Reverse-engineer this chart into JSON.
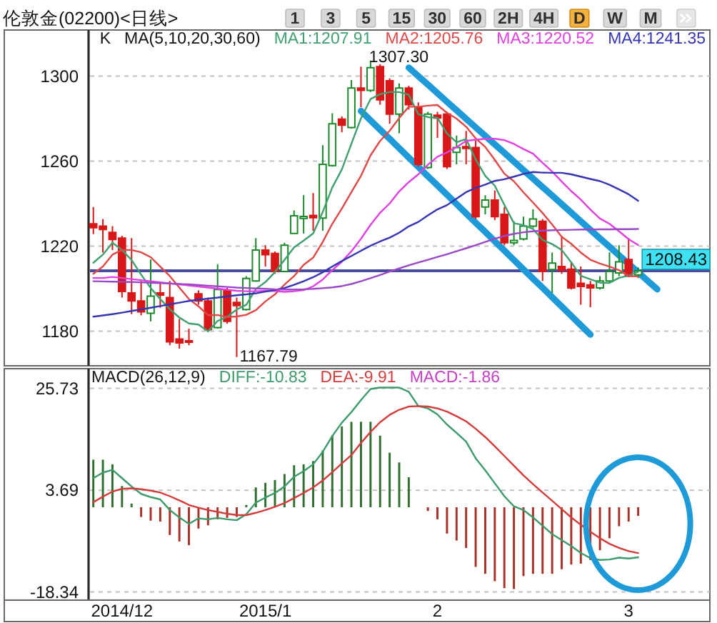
{
  "chart_data": [
    {
      "type": "candlestick",
      "title": "伦敦金(02200)<日线>",
      "subtitle": "K",
      "legend_title": "MA(5,10,20,30,60)",
      "legend": "top right",
      "grid": "y",
      "tick_labels": "y",
      "categories": [
        null,
        null,
        null,
        "2014/12",
        null,
        null,
        null,
        null,
        null,
        null,
        null,
        null,
        null,
        null,
        null,
        null,
        null,
        null,
        "2015/1",
        null,
        null,
        null,
        null,
        null,
        null,
        null,
        null,
        null,
        null,
        null,
        null,
        null,
        null,
        null,
        null,
        null,
        "2",
        null,
        null,
        null,
        null,
        null,
        null,
        null,
        null,
        null,
        null,
        null,
        null,
        null,
        null,
        null,
        null,
        null,
        null,
        null,
        "3",
        null,
        null,
        null,
        null,
        null,
        null,
        null,
        null
      ],
      "ylim": [
        1163.7,
        1321.7
      ],
      "yticks": [
        1180,
        1220,
        1260,
        1300
      ],
      "ohlc": [
        [
          1230.5,
          1238.4,
          1225.6,
          1228.7
        ],
        [
          1229.4,
          1232.8,
          1217.0,
          1227.8
        ],
        [
          1226.5,
          1229.4,
          1218.2,
          1223.1
        ],
        [
          1223.8,
          1224.9,
          1195.8,
          1198.7
        ],
        [
          1198.0,
          1223.8,
          1188.0,
          1194.2
        ],
        [
          1194.2,
          1203.6,
          1187.5,
          1189.1
        ],
        [
          1188.4,
          1213.7,
          1184.6,
          1196.5
        ],
        [
          1198.0,
          1203.0,
          1191.0,
          1197.0
        ],
        [
          1195.8,
          1203.6,
          1173.4,
          1175.0
        ],
        [
          1176.3,
          1185.7,
          1171.8,
          1174.5
        ],
        [
          1175.5,
          1181.2,
          1173.4,
          1174.8
        ],
        [
          1197.6,
          1199.2,
          1192.4,
          1194.2
        ],
        [
          1194.2,
          1195.8,
          1180.0,
          1180.8
        ],
        [
          1181.7,
          1211.5,
          1181.2,
          1199.6
        ],
        [
          1199.2,
          1200.3,
          1183.5,
          1184.6
        ],
        [
          1193.5,
          1195.8,
          1167.79,
          1192.0
        ],
        [
          1190.2,
          1205.9,
          1189.7,
          1204.8
        ],
        [
          1203.6,
          1223.8,
          1203.2,
          1218.2
        ],
        [
          1218.2,
          1220.4,
          1210.4,
          1216.0
        ],
        [
          1216.6,
          1217.5,
          1207.0,
          1208.1
        ],
        [
          1208.1,
          1221.6,
          1207.7,
          1220.4
        ],
        [
          1226.0,
          1236.8,
          1225.6,
          1234.3
        ],
        [
          1233.0,
          1244.0,
          1226.0,
          1234.0
        ],
        [
          1234.5,
          1245.0,
          1227.2,
          1233.4
        ],
        [
          1233.2,
          1267.5,
          1227.2,
          1258.5
        ],
        [
          1257.9,
          1282.5,
          1257.4,
          1277.6
        ],
        [
          1279.8,
          1281.0,
          1273.6,
          1276.9
        ],
        [
          1275.8,
          1298.2,
          1275.3,
          1294.4
        ],
        [
          1294.4,
          1304.5,
          1285.4,
          1293.3
        ],
        [
          1293.3,
          1307.3,
          1292.5,
          1304.0
        ],
        [
          1304.5,
          1305.6,
          1286.6,
          1288.8
        ],
        [
          1297.8,
          1298.9,
          1277.6,
          1282.1
        ],
        [
          1282.1,
          1296.6,
          1273.1,
          1294.4
        ],
        [
          1294.4,
          1295.5,
          1284.3,
          1286.6
        ],
        [
          1285.4,
          1287.7,
          1257.4,
          1258.5
        ],
        [
          1257.0,
          1283.2,
          1256.3,
          1282.1
        ],
        [
          1281.6,
          1283.2,
          1270.9,
          1280.3
        ],
        [
          1282.1,
          1283.2,
          1256.3,
          1257.4
        ],
        [
          1264.1,
          1272.0,
          1258.5,
          1266.4
        ],
        [
          1266.8,
          1274.2,
          1258.5,
          1266.0
        ],
        [
          1266.4,
          1269.7,
          1232.8,
          1233.9
        ],
        [
          1238.4,
          1244.0,
          1235.0,
          1241.7
        ],
        [
          1241.7,
          1246.2,
          1232.3,
          1233.9
        ],
        [
          1235.0,
          1238.4,
          1220.4,
          1221.6
        ],
        [
          1221.6,
          1231.7,
          1220.4,
          1222.7
        ],
        [
          1223.4,
          1233.9,
          1222.7,
          1229.4
        ],
        [
          1229.4,
          1237.3,
          1228.7,
          1232.8
        ],
        [
          1231.7,
          1232.8,
          1203.6,
          1208.1
        ],
        [
          1209.0,
          1217.0,
          1198.0,
          1212.0
        ],
        [
          1210.4,
          1224.9,
          1207.0,
          1208.6
        ],
        [
          1209.2,
          1212.6,
          1199.6,
          1200.3
        ],
        [
          1202.5,
          1210.4,
          1192.4,
          1201.0
        ],
        [
          1201.8,
          1203.6,
          1191.3,
          1200.3
        ],
        [
          1200.3,
          1205.9,
          1199.6,
          1203.6
        ],
        [
          1203.6,
          1217.1,
          1202.5,
          1208.1
        ],
        [
          1207.4,
          1220.4,
          1205.9,
          1212.6
        ],
        [
          1213.7,
          1223.8,
          1205.4,
          1205.9
        ],
        [
          1206.5,
          1210.0,
          1205.0,
          1208.43
        ],
        null,
        null,
        null,
        null,
        null,
        null,
        null
      ],
      "colors": [
        "#d81818",
        "#d81818",
        "#d81818",
        "#d81818",
        "#d81818",
        "#d81818",
        "#1a8a2a",
        "#d81818",
        "#d81818",
        "#d81818",
        "#d81818",
        "#d81818",
        "#d81818",
        "#1a8a2a",
        "#d81818",
        "#d81818",
        "#1a8a2a",
        "#1a8a2a",
        "#d81818",
        "#d81818",
        "#1a8a2a",
        "#1a8a2a",
        "#1a8a2a",
        "#d81818",
        "#1a8a2a",
        "#1a8a2a",
        "#d81818",
        "#1a8a2a",
        "#d81818",
        "#1a8a2a",
        "#d81818",
        "#d81818",
        "#1a8a2a",
        "#d81818",
        "#d81818",
        "#1a8a2a",
        "#d81818",
        "#d81818",
        "#1a8a2a",
        "#d81818",
        "#d81818",
        "#1a8a2a",
        "#d81818",
        "#d81818",
        "#1a8a2a",
        "#1a8a2a",
        "#1a8a2a",
        "#d81818",
        "#1a8a2a",
        "#d81818",
        "#d81818",
        "#d81818",
        "#d81818",
        "#1a8a2a",
        "#1a8a2a",
        "#1a8a2a",
        "#d81818",
        "#1a8a2a",
        null,
        null,
        null,
        null,
        null,
        null,
        null
      ],
      "series": [
        {
          "name": "MA1:1207.91",
          "type": "line",
          "color": "#3f9f6f",
          "values": [
            1212.2,
            1216.0,
            1221.6,
            1218.2,
            1213.5,
            1206.6,
            1200.3,
            1195.1,
            1190.4,
            1186.4,
            1183.6,
            1183.1,
            1179.9,
            1184.8,
            1186.8,
            1190.2,
            1192.4,
            1199.8,
            1203.1,
            1207.8,
            1213.5,
            1219.4,
            1222.6,
            1226.0,
            1236.1,
            1247.6,
            1256.1,
            1268.2,
            1280.1,
            1289.2,
            1291.5,
            1292.5,
            1292.5,
            1291.2,
            1282.1,
            1280.7,
            1280.4,
            1273.0,
            1268.9,
            1270.4,
            1260.8,
            1253.1,
            1248.4,
            1239.4,
            1230.8,
            1229.9,
            1228.1,
            1222.9,
            1221.0,
            1218.2,
            1212.4,
            1206.0,
            1204.4,
            1202.8,
            1202.7,
            1205.1,
            1206.1,
            1207.91,
            null,
            null,
            null,
            null,
            null,
            null,
            null
          ]
        },
        {
          "name": "MA2:1205.76",
          "type": "line",
          "color": "#e04848",
          "values": [
            1207.0,
            1210.4,
            1216.0,
            1218.2,
            1218.2,
            1217.1,
            1214.8,
            1210.4,
            1205.9,
            1200.5,
            1195.1,
            1191.7,
            1187.5,
            1187.6,
            1186.6,
            1186.9,
            1187.7,
            1189.9,
            1194.0,
            1197.3,
            1201.9,
            1205.9,
            1211.2,
            1214.6,
            1222.0,
            1230.5,
            1237.7,
            1245.4,
            1253.1,
            1262.7,
            1269.5,
            1274.3,
            1280.3,
            1285.6,
            1285.6,
            1286.1,
            1286.4,
            1282.7,
            1280.0,
            1276.2,
            1270.7,
            1266.7,
            1260.6,
            1254.1,
            1250.5,
            1245.3,
            1240.5,
            1235.6,
            1230.2,
            1224.4,
            1221.1,
            1217.0,
            1213.6,
            1211.8,
            1210.4,
            1208.7,
            1206.0,
            1205.76,
            null,
            null,
            null,
            null,
            null,
            null,
            null
          ]
        },
        {
          "name": "MA3:1220.52",
          "type": "line",
          "color": "#e040e0",
          "values": [
            1205.0,
            1205.0,
            1205.5,
            1205.0,
            1204.5,
            1204.0,
            1203.5,
            1203.0,
            1202.5,
            1202.0,
            1201.5,
            1201.0,
            1200.5,
            1200.0,
            1199.5,
            1199.0,
            1198.8,
            1198.8,
            1198.9,
            1198.9,
            1198.5,
            1198.8,
            1199.3,
            1201.1,
            1204.3,
            1208.7,
            1212.7,
            1217.6,
            1223.5,
            1230.0,
            1235.7,
            1240.1,
            1245.8,
            1250.1,
            1253.8,
            1258.3,
            1262.1,
            1264.1,
            1266.6,
            1269.5,
            1270.1,
            1270.5,
            1270.5,
            1269.9,
            1268.1,
            1265.7,
            1263.5,
            1259.2,
            1255.1,
            1250.4,
            1245.9,
            1241.9,
            1237.2,
            1233.0,
            1230.5,
            1227.0,
            1223.3,
            1220.52,
            null,
            null,
            null,
            null,
            null,
            null,
            null
          ]
        },
        {
          "name": "MA4:1241.35",
          "type": "line",
          "color": "#3434b4",
          "values": [
            1186.8,
            1187.4,
            1188.0,
            1188.7,
            1189.5,
            1190.2,
            1191.0,
            1191.8,
            1192.6,
            1193.4,
            1194.2,
            1194.8,
            1195.3,
            1195.8,
            1196.4,
            1196.9,
            1197.3,
            1197.8,
            1198.6,
            1199.4,
            1200.3,
            1201.8,
            1203.5,
            1205.4,
            1207.7,
            1210.4,
            1213.0,
            1215.4,
            1217.8,
            1220.2,
            1222.2,
            1224.0,
            1226.3,
            1229.3,
            1231.4,
            1234.5,
            1237.3,
            1239.3,
            1242.4,
            1245.4,
            1247.4,
            1249.0,
            1250.7,
            1251.5,
            1252.7,
            1254.0,
            1254.9,
            1254.6,
            1254.5,
            1254.5,
            1253.8,
            1252.7,
            1251.6,
            1250.6,
            1248.9,
            1246.7,
            1244.4,
            1241.35,
            null,
            null,
            null,
            null,
            null,
            null,
            null
          ]
        },
        {
          "type": "line",
          "color": "#9a48c8",
          "values": [
            1203.5,
            1203.4,
            1203.3,
            1203.2,
            1203.1,
            1203.0,
            1202.8,
            1202.6,
            1202.4,
            1202.2,
            1202.0,
            1201.7,
            1201.4,
            1201.1,
            1200.8,
            1200.5,
            1200.3,
            1200.1,
            1199.9,
            1199.7,
            1199.6,
            1199.6,
            1199.7,
            1199.9,
            1200.2,
            1200.6,
            1201.2,
            1202.2,
            1203.5,
            1204.9,
            1206.4,
            1208.0,
            1209.5,
            1211.0,
            1212.3,
            1213.6,
            1214.9,
            1216.2,
            1217.6,
            1219.0,
            1220.5,
            1222.0,
            1223.5,
            1224.8,
            1225.8,
            1226.5,
            1227.0,
            1227.3,
            1227.5,
            1227.6,
            1227.7,
            1227.8,
            1227.8,
            1227.9,
            1227.9,
            1228.0,
            1228.0,
            1228.1,
            null,
            null,
            null,
            null,
            null,
            null,
            null
          ]
        },
        {
          "type": "line",
          "color": "#1e9ad8",
          "values": [
            null,
            null,
            null,
            null,
            null,
            null,
            null,
            null,
            null,
            null,
            null,
            null,
            null,
            null,
            null,
            null,
            null,
            null,
            null,
            null,
            null,
            null,
            null,
            null,
            null,
            null,
            null,
            null,
            null,
            null,
            null,
            null,
            null,
            1304.0,
            1300.0,
            1296.0,
            1292.0,
            1287.9,
            1283.9,
            1279.9,
            1275.9,
            1271.9,
            1267.9,
            1263.9,
            1259.8,
            1255.8,
            1251.8,
            1247.8,
            1243.8,
            1239.8,
            1235.8,
            1231.7,
            1227.7,
            1223.7,
            1219.7,
            1215.7,
            1211.7,
            1207.7,
            1203.7,
            1199.7,
            null,
            null,
            null,
            null,
            null
          ]
        },
        {
          "type": "line",
          "color": "#1e9ad8",
          "values": [
            null,
            null,
            null,
            null,
            null,
            null,
            null,
            null,
            null,
            null,
            null,
            null,
            null,
            null,
            null,
            null,
            null,
            null,
            null,
            null,
            null,
            null,
            null,
            null,
            null,
            null,
            null,
            null,
            1283.6,
            1279.2,
            1274.8,
            1270.5,
            1266.1,
            1261.7,
            1257.3,
            1252.9,
            1248.6,
            1244.2,
            1239.8,
            1235.4,
            1231.0,
            1226.7,
            1222.3,
            1217.9,
            1213.5,
            1209.1,
            1204.7,
            1200.4,
            1196.0,
            1191.6,
            1187.2,
            1182.8,
            1178.4,
            null,
            null,
            null,
            null,
            null,
            null,
            null,
            null,
            null,
            null,
            null,
            null
          ]
        }
      ],
      "ref_lines": [
        {
          "axis": "y",
          "value": 1208.43,
          "label": "1208.43",
          "color": "#4a4aa0"
        }
      ],
      "annotations": [
        "1307.30",
        "1167.79"
      ]
    },
    {
      "type": "other",
      "annotations": [
        "1",
        "3",
        "5",
        "15",
        "30",
        "60",
        "2H",
        "4H",
        "D",
        "W",
        "M"
      ]
    },
    {
      "type": "bar",
      "legend_title": "MACD(26,12,9)",
      "legend": "top left",
      "grid": "y",
      "categories": [
        null,
        null,
        null,
        "2014/12",
        null,
        null,
        null,
        null,
        null,
        null,
        null,
        null,
        null,
        null,
        null,
        null,
        null,
        null,
        "2015/1",
        null,
        null,
        null,
        null,
        null,
        null,
        null,
        null,
        null,
        null,
        null,
        null,
        null,
        null,
        null,
        null,
        null,
        "2",
        null,
        null,
        null,
        null,
        null,
        null,
        null,
        null,
        null,
        null,
        null,
        null,
        null,
        null,
        null,
        null,
        null,
        null,
        null,
        "3",
        null,
        null,
        null,
        null,
        null,
        null,
        null,
        null
      ],
      "ylim": [
        -20.1,
        30.0
      ],
      "yticks": [
        25.73,
        3.69,
        -18.34
      ],
      "annotations": [
        "MACD:-1.86"
      ],
      "series": [
        {
          "name": "DIFF:-10.83",
          "type": "line",
          "color": "#3d9a6a",
          "values": [
            6.3,
            7.5,
            8.1,
            6.3,
            4.5,
            2.9,
            2.2,
            1.7,
            -0.6,
            -2.2,
            -3.6,
            -2.4,
            -2.6,
            -2.3,
            -2.6,
            -2.8,
            -1.5,
            1.0,
            2.1,
            3.1,
            4.5,
            6.6,
            7.8,
            9.3,
            12.0,
            15.4,
            18.3,
            20.6,
            23.2,
            25.6,
            25.9,
            25.9,
            25.9,
            25.0,
            21.9,
            21.4,
            20.1,
            17.9,
            16.1,
            14.2,
            10.6,
            8.0,
            5.2,
            2.4,
            0.2,
            -0.6,
            -2.2,
            -4.0,
            -5.8,
            -7.1,
            -8.4,
            -9.9,
            -11.0,
            -11.4,
            -11.3,
            -10.9,
            -11.1,
            -10.83,
            null,
            null,
            null,
            null,
            null,
            null,
            null
          ]
        },
        {
          "name": "DEA:-9.91",
          "type": "line",
          "color": "#d43c3c",
          "values": [
            1.1,
            2.3,
            3.4,
            4.0,
            4.1,
            3.9,
            3.6,
            3.2,
            2.4,
            1.5,
            0.5,
            -0.1,
            -0.6,
            -1.0,
            -1.4,
            -1.7,
            -1.7,
            -1.2,
            -0.6,
            0.1,
            0.9,
            2.0,
            3.1,
            4.3,
            5.8,
            7.6,
            9.5,
            11.3,
            13.9,
            16.3,
            18.4,
            20.0,
            21.1,
            21.8,
            21.9,
            21.8,
            21.4,
            20.7,
            19.7,
            18.6,
            17.0,
            15.2,
            13.2,
            11.1,
            9.0,
            6.9,
            5.0,
            3.2,
            1.4,
            -0.4,
            -2.2,
            -3.8,
            -5.3,
            -6.7,
            -7.9,
            -8.8,
            -9.5,
            -9.91,
            null,
            null,
            null,
            null,
            null,
            null,
            null
          ]
        },
        {
          "type": "bar",
          "values": [
            10.3,
            10.3,
            9.3,
            4.6,
            0.8,
            -2.1,
            -2.9,
            -3.1,
            -6.0,
            -7.4,
            -8.2,
            -4.6,
            -3.9,
            -2.6,
            -2.3,
            -2.1,
            0.5,
            4.3,
            5.3,
            5.9,
            7.2,
            9.1,
            9.3,
            10.0,
            12.3,
            15.6,
            17.5,
            18.5,
            18.5,
            18.5,
            15.5,
            11.8,
            9.7,
            6.5,
            null,
            -0.8,
            -2.6,
            -5.7,
            -7.2,
            -8.8,
            -12.9,
            -14.4,
            -16.0,
            -17.5,
            -17.7,
            -14.9,
            -14.4,
            -14.4,
            -14.4,
            -13.4,
            -12.4,
            -12.2,
            -11.4,
            -9.3,
            -6.7,
            -4.1,
            -3.1,
            -1.86,
            null,
            null,
            null,
            null,
            null,
            null,
            null
          ],
          "colors": [
            "#2f6f2f",
            "#2f6f2f",
            "#2f6f2f",
            "#2f6f2f",
            "#2f6f2f",
            "#a83228",
            "#a83228",
            "#a83228",
            "#a83228",
            "#a83228",
            "#a83228",
            "#a83228",
            "#a83228",
            "#a83228",
            "#a83228",
            "#a83228",
            "#2f6f2f",
            "#2f6f2f",
            "#2f6f2f",
            "#2f6f2f",
            "#2f6f2f",
            "#2f6f2f",
            "#2f6f2f",
            "#2f6f2f",
            "#2f6f2f",
            "#2f6f2f",
            "#2f6f2f",
            "#2f6f2f",
            "#2f6f2f",
            "#2f6f2f",
            "#2f6f2f",
            "#2f6f2f",
            "#2f6f2f",
            "#2f6f2f",
            null,
            "#a83228",
            "#a83228",
            "#a83228",
            "#a83228",
            "#a83228",
            "#a83228",
            "#a83228",
            "#a83228",
            "#a83228",
            "#a83228",
            "#a83228",
            "#a83228",
            "#a83228",
            "#a83228",
            "#a83228",
            "#a83228",
            "#a83228",
            "#a83228",
            "#a83228",
            "#a83228",
            "#a83228",
            "#a83228",
            "#a83228",
            null,
            null,
            null,
            null,
            null,
            null,
            null
          ]
        }
      ]
    }
  ]
}
